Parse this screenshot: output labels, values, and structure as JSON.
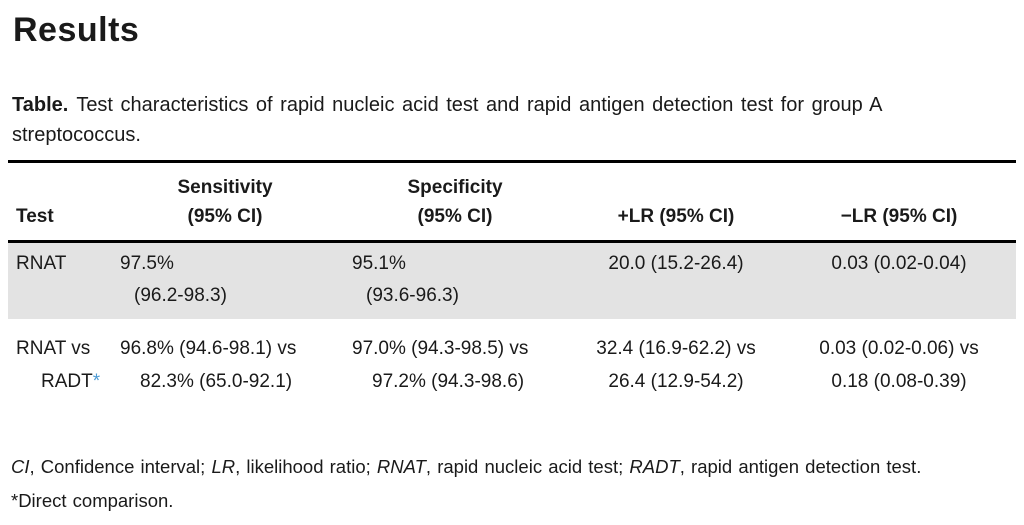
{
  "heading": "Results",
  "caption": {
    "label": "Table.",
    "text": "Test characteristics of rapid nucleic acid test and rapid antigen detection test for group A streptococcus."
  },
  "table": {
    "header": [
      {
        "lines": [
          "Test"
        ]
      },
      {
        "lines": [
          "Sensitivity",
          "(95% CI)"
        ]
      },
      {
        "lines": [
          "Specificity",
          "(95% CI)"
        ]
      },
      {
        "lines": [
          "+LR (95% CI)"
        ]
      },
      {
        "lines": [
          "−LR (95% CI)"
        ]
      }
    ],
    "rows": [
      {
        "cells": [
          {
            "lines": [
              "RNAT"
            ]
          },
          {
            "lines": [
              "97.5%",
              "(96.2-98.3)"
            ]
          },
          {
            "lines": [
              "95.1%",
              "(93.6-96.3)"
            ]
          },
          {
            "lines": [
              "20.0 (15.2-26.4)"
            ]
          },
          {
            "lines": [
              "0.03 (0.02-0.04)"
            ]
          }
        ]
      },
      {
        "cells": [
          {
            "lines": [
              "RNAT vs",
              "RADT"
            ],
            "mark": "*"
          },
          {
            "lines": [
              "96.8% (94.6-98.1) vs",
              "82.3% (65.0-92.1)"
            ]
          },
          {
            "lines": [
              "97.0% (94.3-98.5) vs",
              "97.2% (94.3-98.6)"
            ]
          },
          {
            "lines": [
              "32.4 (16.9-62.2) vs",
              "26.4 (12.9-54.2)"
            ]
          },
          {
            "lines": [
              "0.03 (0.02-0.06) vs",
              "0.18 (0.08-0.39)"
            ]
          }
        ]
      }
    ]
  },
  "footnote": {
    "abbr1": "CI",
    "def1": ", Confidence interval; ",
    "abbr2": "LR",
    "def2": ", likelihood ratio; ",
    "abbr3": "RNAT",
    "def3": ", rapid nucleic acid test; ",
    "abbr4": "RADT",
    "def4": ", rapid antigen detection test.",
    "note": "*Direct comparison."
  },
  "colors": {
    "shaded_row": "#e3e3e3",
    "asterisk_blue": "#4e9bd4",
    "text": "#1a1a1a",
    "rule": "#000000"
  }
}
